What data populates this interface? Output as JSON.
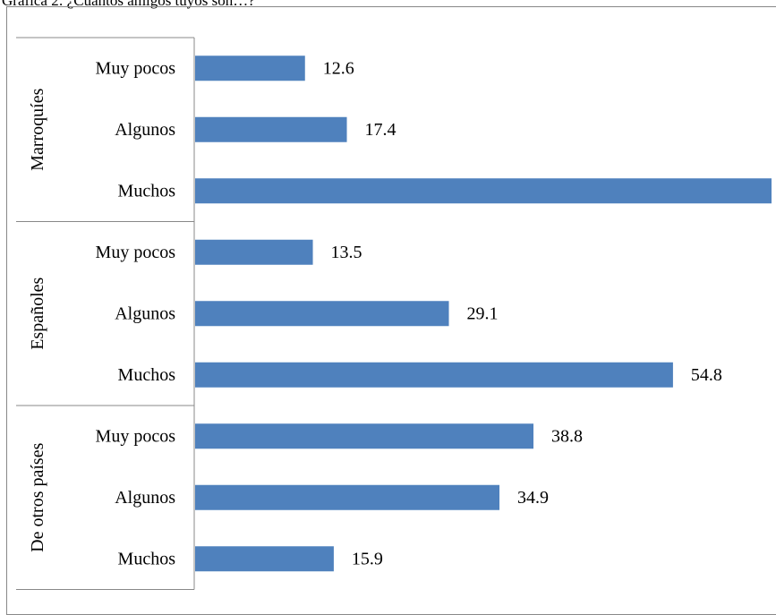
{
  "caption": "Gráfica 2: ¿Cuántos amigos tuyos son…?",
  "chart_data": {
    "type": "bar",
    "orientation": "horizontal",
    "title": "",
    "groups": [
      {
        "name": "Marroquíes",
        "categories": [
          "Muy pocos",
          "Algunos",
          "Muchos"
        ],
        "values": [
          12.6,
          17.4,
          66.1
        ]
      },
      {
        "name": "Españoles",
        "categories": [
          "Muy pocos",
          "Algunos",
          "Muchos"
        ],
        "values": [
          13.5,
          29.1,
          54.8
        ]
      },
      {
        "name": "De otros países",
        "categories": [
          "Muy pocos",
          "Algunos",
          "Muchos"
        ],
        "values": [
          38.8,
          34.9,
          15.9
        ]
      }
    ],
    "xlim": [
      0,
      70
    ],
    "bar_color": "#4f81bd",
    "grid": false,
    "legend": "none"
  }
}
